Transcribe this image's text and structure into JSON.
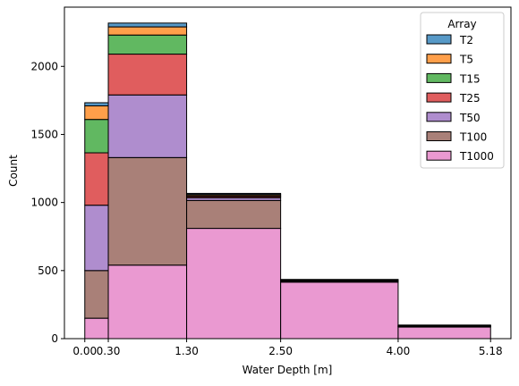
{
  "chart_data": {
    "type": "bar",
    "subtype": "stacked-histogram",
    "title": "",
    "xlabel": "Water Depth [m]",
    "ylabel": "Count",
    "x_ticks": [
      0.0,
      0.3,
      1.3,
      2.5,
      4.0,
      5.18
    ],
    "x_tick_labels": [
      "0.00",
      "0.30",
      "1.30",
      "2.50",
      "4.00",
      "5.18"
    ],
    "y_ticks": [
      0,
      500,
      1000,
      1500,
      2000
    ],
    "y_tick_labels": [
      "0",
      "500",
      "1000",
      "1500",
      "2000"
    ],
    "xlim": [
      -0.26,
      5.44
    ],
    "ylim": [
      0,
      2435
    ],
    "bins": [
      [
        0.0,
        0.3
      ],
      [
        0.3,
        1.3
      ],
      [
        1.3,
        2.5
      ],
      [
        2.5,
        4.0
      ],
      [
        4.0,
        5.18
      ]
    ],
    "legend": {
      "title": "Array",
      "position": "top-right"
    },
    "series": [
      {
        "name": "T2",
        "color": "#1f77b4",
        "values": [
          23,
          28,
          8,
          4,
          3
        ]
      },
      {
        "name": "T5",
        "color": "#ff7f0e",
        "values": [
          100,
          60,
          9,
          4,
          3
        ]
      },
      {
        "name": "T15",
        "color": "#2ca02c",
        "values": [
          245,
          140,
          5,
          3,
          2
        ]
      },
      {
        "name": "T25",
        "color": "#d62728",
        "values": [
          385,
          300,
          10,
          3,
          2
        ]
      },
      {
        "name": "T50",
        "color": "#9467bd",
        "values": [
          480,
          460,
          20,
          3,
          2
        ]
      },
      {
        "name": "T100",
        "color": "#8c564b",
        "values": [
          350,
          790,
          205,
          3,
          3
        ]
      },
      {
        "name": "T1000",
        "color": "#e377c2",
        "values": [
          150,
          540,
          810,
          415,
          85
        ]
      }
    ],
    "grid": false
  }
}
